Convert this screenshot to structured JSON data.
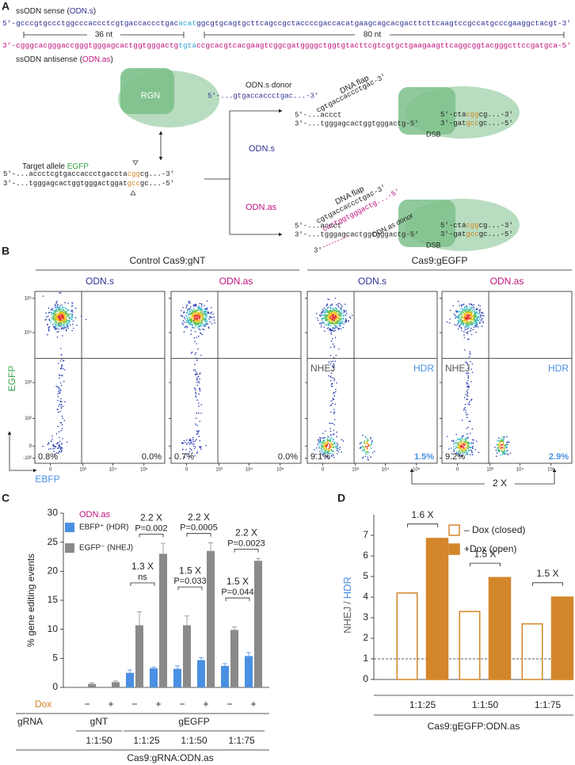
{
  "panel_a": {
    "label": "A",
    "sense_label": [
      "ssODN sense (",
      "ODN.s",
      ")"
    ],
    "sense_seq": [
      "5′-gcccgtgccctggcccaccctcgtgaccaccctgac",
      "acat",
      "ggcgtgcagtgcttcagccgctaccccgaccacatgaagcagcacgacttcttcaagtccgccatgcccgaaggctacgt-3′"
    ],
    "left_length": "36 nt",
    "right_length": "80 nt",
    "antisense_seq": [
      "3′-cgggcacgggaccgggtgggagcactggtgggactg",
      "tgta",
      "ccgcacgtcacgaagtcggcgatggggctggtgtacttcgtcgtgctgaagaagttcaggcggtacgggcttccgatgca-5′"
    ],
    "antisense_label": [
      "ssODN antisense (",
      "ODN.as",
      ")"
    ],
    "rgn": "RGN",
    "target_label": [
      "Target allele ",
      "EGFP"
    ],
    "target_top": [
      "5′-...accctcgtgaccaccctgaccta",
      "cgg",
      "cg...-3′"
    ],
    "target_bottom": [
      "3′-...tgggagcactggtgggactggat",
      "gcc",
      "gc...-5′"
    ],
    "branch_s": "ODN.s",
    "branch_as": "ODN.as",
    "donor_s_label": "ODN.s donor",
    "donor_s_seq": "5′-...gtgaccaccctgac...-3′",
    "upper": {
      "flap_label": "DNA flap",
      "flap_seq": "cgtgaccaccctgac-3′",
      "left_top": "5′-...accct",
      "left_bottom": "3′-...tgggagcactggtgggactg-5′",
      "right_top": [
        "5′-cta",
        "cgg",
        "cg...-3′"
      ],
      "right_bottom": [
        "3′-gat",
        "gcc",
        "gc...-5′"
      ],
      "dsb": "DSB"
    },
    "lower": {
      "flap_label": "DNA flap",
      "flap_seq": "cgtgaccaccctgac-3′",
      "donor_seq": "cactggtgggactg...-5′",
      "donor_label": "ODN.as donor",
      "left_top": "5′-...accct",
      "left_bottom": "3′-...tgggagcactggtgggactg-5′",
      "donor_end": "3′",
      "right_top": [
        "5′-cta",
        "cgg",
        "cg...-3′"
      ],
      "right_bottom": [
        "3′-gat",
        "gcc",
        "gc...-5′"
      ],
      "dsb": "DSB"
    }
  },
  "panel_b": {
    "label": "B",
    "groups": [
      "Control Cas9:gNT",
      "Cas9:gEGFP"
    ],
    "plots": [
      {
        "title": "ODN.s",
        "left_pct": "0.8%",
        "right_pct": "0.0%"
      },
      {
        "title": "ODN.as",
        "left_pct": "0.7%",
        "right_pct": "0.0%"
      },
      {
        "title": "ODN.s",
        "left_gate": "NHEJ",
        "right_gate": "HDR",
        "left_pct": "9.1%",
        "right_pct": "1.5%"
      },
      {
        "title": "ODN.as",
        "left_gate": "NHEJ",
        "right_gate": "HDR",
        "left_pct": "9.2%",
        "right_pct": "2.9%"
      }
    ],
    "y_axis": "EGFP",
    "x_axis": "EBFP",
    "y_ticks": [
      "10⁵",
      "10⁴",
      "10³",
      "10²",
      "0",
      "-10²"
    ],
    "x_ticks": [
      "0",
      "10³",
      "10⁴",
      "10⁵"
    ],
    "fold": "2 X"
  },
  "chart_data": [
    {
      "type": "bar",
      "panel": "C",
      "legend_title": "ODN.as",
      "ylabel": "% gene editing events",
      "xlabel": "Cas9:gRNA:ODN.as",
      "row_labels": [
        "Dox",
        "gRNA"
      ],
      "categories": [
        "−",
        "+",
        "−",
        "+",
        "−",
        "+",
        "−",
        "+"
      ],
      "grna": [
        "gNT",
        "gNT",
        "gEGFP",
        "gEGFP",
        "gEGFP",
        "gEGFP",
        "gEGFP",
        "gEGFP"
      ],
      "ratio": [
        "1:1:50",
        "1:1:50",
        "1:1:25",
        "1:1:25",
        "1:1:50",
        "1:1:50",
        "1:1:75",
        "1:1:75"
      ],
      "series": [
        {
          "name": "EBFP⁺ (HDR)",
          "color": "#4a90e2",
          "values": [
            null,
            null,
            2.5,
            3.3,
            3.2,
            4.7,
            3.7,
            5.4
          ],
          "errors": [
            null,
            null,
            0.5,
            0.2,
            0.5,
            0.4,
            0.4,
            0.6
          ]
        },
        {
          "name": "EGFP⁻ (NHEJ)",
          "color": "#8a8a8a",
          "values": [
            0.6,
            0.9,
            10.7,
            23.0,
            10.7,
            23.5,
            9.9,
            21.8
          ],
          "errors": [
            0.2,
            0.2,
            2.3,
            1.8,
            1.6,
            1.4,
            0.5,
            0.4
          ]
        }
      ],
      "ylim": [
        0,
        30
      ],
      "yticks": [
        0,
        5,
        10,
        15,
        20,
        25,
        30
      ],
      "annotations": [
        {
          "fold": "1.3 X",
          "p": "ns",
          "series": 0,
          "categories": [
            2,
            3
          ]
        },
        {
          "fold": "2.2 X",
          "p": "P=0.002",
          "series": 1,
          "categories": [
            2,
            3
          ]
        },
        {
          "fold": "1.5 X",
          "p": "P=0.033",
          "series": 0,
          "categories": [
            4,
            5
          ]
        },
        {
          "fold": "2.2 X",
          "p": "P=0.0005",
          "series": 1,
          "categories": [
            4,
            5
          ]
        },
        {
          "fold": "1.5 X",
          "p": "P=0.044",
          "series": 0,
          "categories": [
            6,
            7
          ]
        },
        {
          "fold": "2.2 X",
          "p": "P=0.0023",
          "series": 1,
          "categories": [
            6,
            7
          ]
        }
      ]
    },
    {
      "type": "bar",
      "panel": "D",
      "ylabel": [
        "NHEJ",
        "/",
        "HDR"
      ],
      "xlabel": "Cas9:gEGFP:ODN.as",
      "categories": [
        "1:1:25",
        "1:1:50",
        "1:1:75"
      ],
      "series": [
        {
          "name": "– Dox (closed)",
          "color": "#d4862a",
          "filled": false,
          "values": [
            4.2,
            3.3,
            2.7
          ]
        },
        {
          "name": "+Dox (open)",
          "color": "#d4862a",
          "filled": true,
          "values": [
            6.85,
            4.95,
            4.0
          ]
        }
      ],
      "ylim": [
        0,
        8
      ],
      "yticks": [
        0,
        1,
        2,
        3,
        4,
        5,
        6,
        7
      ],
      "reference_line": 1,
      "annotations": [
        "1.6 X",
        "1.5 X",
        "1.5 X"
      ]
    }
  ]
}
